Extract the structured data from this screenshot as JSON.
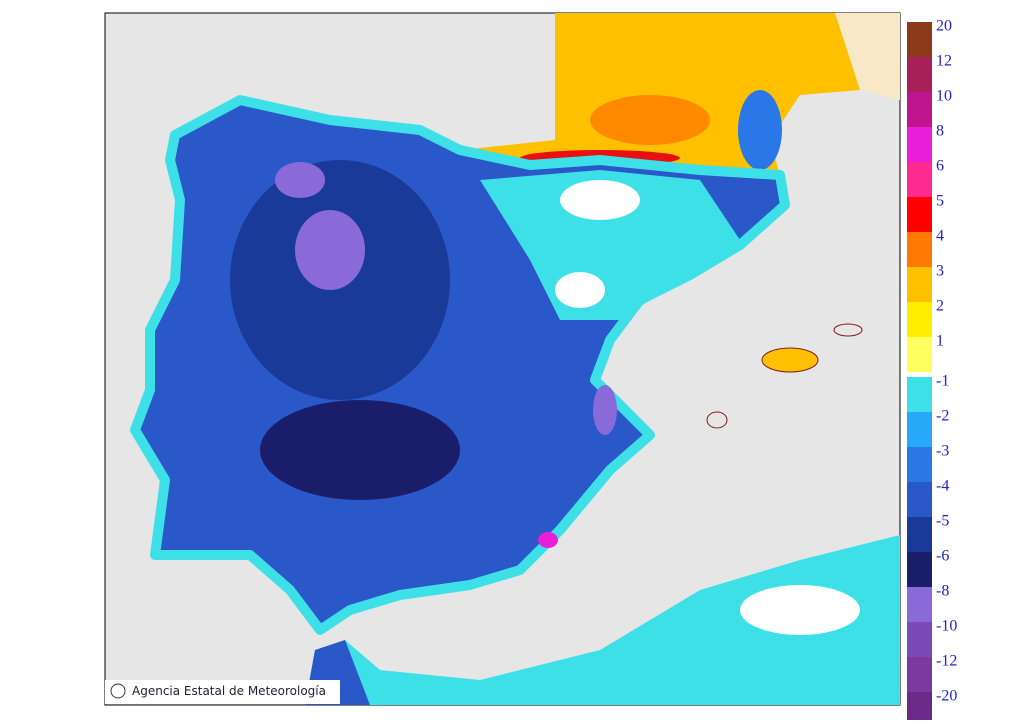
{
  "map": {
    "credit": "Agencia Estatal de Meteorología",
    "legend": {
      "positive": [
        {
          "value": 20,
          "color": "#8b3a1a"
        },
        {
          "value": 12,
          "color": "#a8205a"
        },
        {
          "value": 10,
          "color": "#c0148c"
        },
        {
          "value": 8,
          "color": "#e81ed8"
        },
        {
          "value": 6,
          "color": "#ff2a90"
        },
        {
          "value": 5,
          "color": "#ff0000"
        },
        {
          "value": 4,
          "color": "#ff7800"
        },
        {
          "value": 3,
          "color": "#ffc000"
        },
        {
          "value": 2,
          "color": "#ffee00"
        },
        {
          "value": 1,
          "color": "#ffff60"
        }
      ],
      "negative": [
        {
          "value": -1,
          "color": "#3ee0e8"
        },
        {
          "value": -2,
          "color": "#28a8f8"
        },
        {
          "value": -3,
          "color": "#2a78e8"
        },
        {
          "value": -4,
          "color": "#2a58c8"
        },
        {
          "value": -5,
          "color": "#1a3a9a"
        },
        {
          "value": -6,
          "color": "#1a1e6a"
        },
        {
          "value": -8,
          "color": "#8a6ad8"
        },
        {
          "value": -10,
          "color": "#7a4ab8"
        },
        {
          "value": -12,
          "color": "#7a3aa0"
        },
        {
          "value": -20,
          "color": "#6a2a88"
        }
      ]
    }
  }
}
